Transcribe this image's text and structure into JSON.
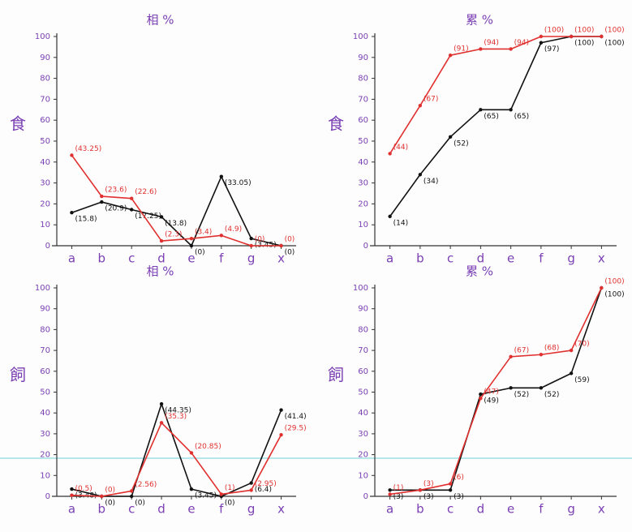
{
  "chart_data": [
    {
      "type": "line",
      "title": "相 %",
      "y_label": "食",
      "categories": [
        "a",
        "b",
        "c",
        "d",
        "e",
        "f",
        "g",
        "x"
      ],
      "ylim": [
        0,
        100
      ],
      "yticks": [
        0,
        10,
        20,
        30,
        40,
        50,
        60,
        70,
        80,
        90,
        100
      ],
      "series": [
        {
          "color": "#111111",
          "values": [
            15.8,
            20.9,
            17.25,
            13.8,
            0,
            33.05,
            3.45,
            0
          ],
          "value_labels": [
            "(15.8)",
            "(20.9)",
            "(17.25)",
            "(13.8)",
            "(0)",
            "(33.05)",
            "(3.45)",
            "(0)"
          ]
        },
        {
          "color": "#e0302f",
          "values": [
            43.25,
            23.6,
            22.6,
            2.3,
            3.4,
            4.9,
            0,
            0
          ],
          "value_labels": [
            "(43.25)",
            "(23.6)",
            "(22.6)",
            "(2.3)",
            "(3.4)",
            "(4.9)",
            "(0)",
            "(0)"
          ]
        }
      ]
    },
    {
      "type": "line",
      "title": "累 %",
      "y_label": "食",
      "categories": [
        "a",
        "b",
        "c",
        "d",
        "e",
        "f",
        "g",
        "x"
      ],
      "ylim": [
        0,
        100
      ],
      "yticks": [
        0,
        10,
        20,
        30,
        40,
        50,
        60,
        70,
        80,
        90,
        100
      ],
      "series": [
        {
          "color": "#111111",
          "values": [
            14,
            34,
            52,
            65,
            65,
            97,
            100,
            100
          ],
          "value_labels": [
            "(14)",
            "(34)",
            "(52)",
            "(65)",
            "(65)",
            "(97)",
            "(100)",
            "(100)"
          ]
        },
        {
          "color": "#e0302f",
          "values": [
            44,
            67,
            91,
            94,
            94,
            100,
            100,
            100
          ],
          "value_labels": [
            "(44)",
            "(67)",
            "(91)",
            "(94)",
            "(94)",
            "(100)",
            "(100)",
            "(100)"
          ]
        }
      ]
    },
    {
      "type": "line",
      "title": "相 %",
      "y_label": "飼",
      "categories": [
        "a",
        "b",
        "c",
        "d",
        "e",
        "f",
        "g",
        "x"
      ],
      "ylim": [
        0,
        100
      ],
      "yticks": [
        0,
        10,
        20,
        30,
        40,
        50,
        60,
        70,
        80,
        90,
        100
      ],
      "series": [
        {
          "color": "#111111",
          "values": [
            3.48,
            0,
            0,
            44.35,
            3.45,
            0,
            6.4,
            41.4
          ],
          "value_labels": [
            "(3.48)",
            "(0)",
            "(0)",
            "(44.35)",
            "(3.45)",
            "(0)",
            "(6.4)",
            "(41.4)"
          ]
        },
        {
          "color": "#e0302f",
          "values": [
            0.5,
            0,
            2.56,
            35.3,
            20.85,
            1,
            2.95,
            29.5
          ],
          "value_labels": [
            "(0.5)",
            "(0)",
            "(2.56)",
            "(35.3)",
            "(20.85)",
            "(1)",
            "(2.95)",
            "(29.5)"
          ]
        }
      ]
    },
    {
      "type": "line",
      "title": "累 %",
      "y_label": "飼",
      "categories": [
        "a",
        "b",
        "c",
        "d",
        "e",
        "f",
        "g",
        "x"
      ],
      "ylim": [
        0,
        100
      ],
      "yticks": [
        0,
        10,
        20,
        30,
        40,
        50,
        60,
        70,
        80,
        90,
        100
      ],
      "series": [
        {
          "color": "#111111",
          "values": [
            3,
            3,
            3,
            49,
            52,
            52,
            59,
            100
          ],
          "value_labels": [
            "(3)",
            "(3)",
            "(3)",
            "(49)",
            "(52)",
            "(52)",
            "(59)",
            "(100)"
          ]
        },
        {
          "color": "#e0302f",
          "values": [
            1,
            3,
            6,
            47,
            67,
            68,
            70,
            100
          ],
          "value_labels": [
            "(1)",
            "(3)",
            "(6)",
            "(47)",
            "(67)",
            "(68)",
            "(70)",
            "(100)"
          ]
        }
      ]
    }
  ]
}
